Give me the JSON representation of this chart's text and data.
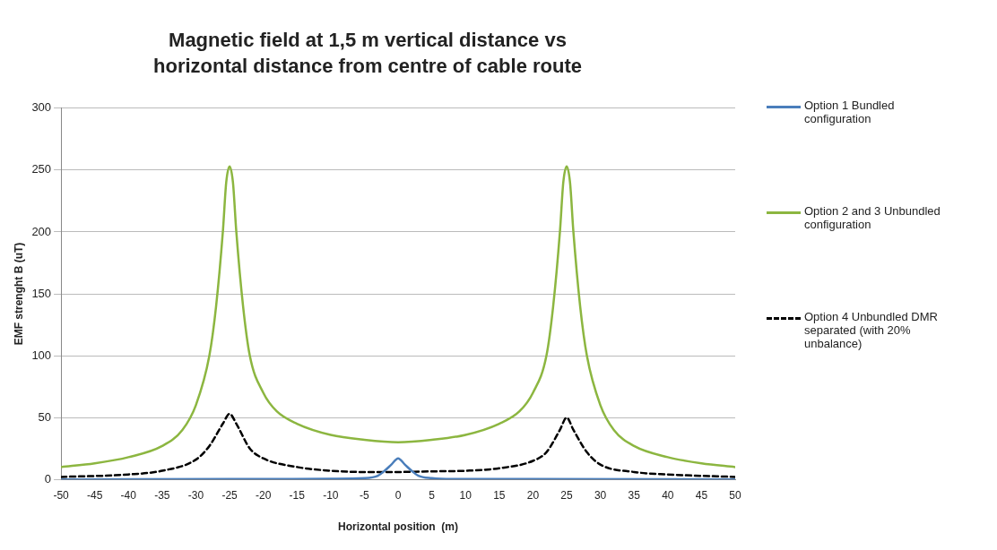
{
  "chart_data": {
    "type": "line",
    "title": "Magnetic field at 1,5 m vertical distance vs horizontal distance from centre of cable route",
    "xlabel": "Horizontal position  (m)",
    "ylabel": "EMF strenght B (uT)",
    "xlim": [
      -50,
      50
    ],
    "xticks": [
      -50,
      -45,
      -40,
      -35,
      -30,
      -25,
      -20,
      -15,
      -10,
      -5,
      0,
      5,
      10,
      15,
      20,
      25,
      30,
      35,
      40,
      45,
      50
    ],
    "ylim": [
      0,
      300
    ],
    "yticks": [
      0,
      50,
      100,
      150,
      200,
      250,
      300
    ],
    "grid": "y",
    "legend": "right",
    "marker": "none",
    "series": [
      {
        "name": "Option 1 Bundled configuration",
        "color": "#4a7ebb",
        "line_style": "solid",
        "x": [
          -50,
          -20,
          -10,
          -5,
          -3,
          -2,
          -1,
          0,
          1,
          2,
          3,
          5,
          8,
          20,
          50
        ],
        "values": [
          0,
          0.3,
          0.5,
          1,
          3,
          7,
          12,
          17,
          12,
          7,
          3,
          1,
          0.3,
          0.3,
          0
        ]
      },
      {
        "name": "Option 2 and 3 Unbundled configuration",
        "color": "#8cb640",
        "line_style": "solid",
        "x": [
          -50,
          -45,
          -40,
          -35,
          -32,
          -30,
          -28,
          -27,
          -26,
          -25.5,
          -25,
          -24.5,
          -24,
          -23,
          -22,
          -20,
          -18,
          -15,
          -10,
          -5,
          0,
          5,
          10,
          15,
          18,
          20,
          22,
          23,
          24,
          24.5,
          25,
          25.5,
          26,
          27,
          28,
          30,
          32,
          35,
          40,
          45,
          50
        ],
        "values": [
          10,
          13,
          18,
          27,
          40,
          60,
          100,
          140,
          200,
          240,
          253,
          240,
          200,
          140,
          100,
          70,
          55,
          45,
          36,
          32,
          30,
          32,
          36,
          45,
          55,
          70,
          100,
          140,
          200,
          240,
          253,
          240,
          200,
          140,
          100,
          60,
          40,
          27,
          18,
          13,
          10
        ]
      },
      {
        "name": "Option 4  Unbundled DMR separated (with 20% unbalance)",
        "color": "#000000",
        "line_style": "dashed",
        "x": [
          -50,
          -40,
          -35,
          -30,
          -28,
          -26,
          -25,
          -24,
          -22,
          -20,
          -15,
          -10,
          -5,
          0,
          5,
          10,
          15,
          20,
          22,
          24,
          25,
          26,
          28,
          30,
          35,
          40,
          50
        ],
        "values": [
          2,
          4,
          7,
          16,
          27,
          45,
          53,
          45,
          25,
          17,
          10,
          7,
          6,
          6,
          6.5,
          7,
          9,
          15,
          22,
          40,
          50,
          40,
          22,
          12,
          6,
          4,
          2
        ]
      }
    ]
  }
}
